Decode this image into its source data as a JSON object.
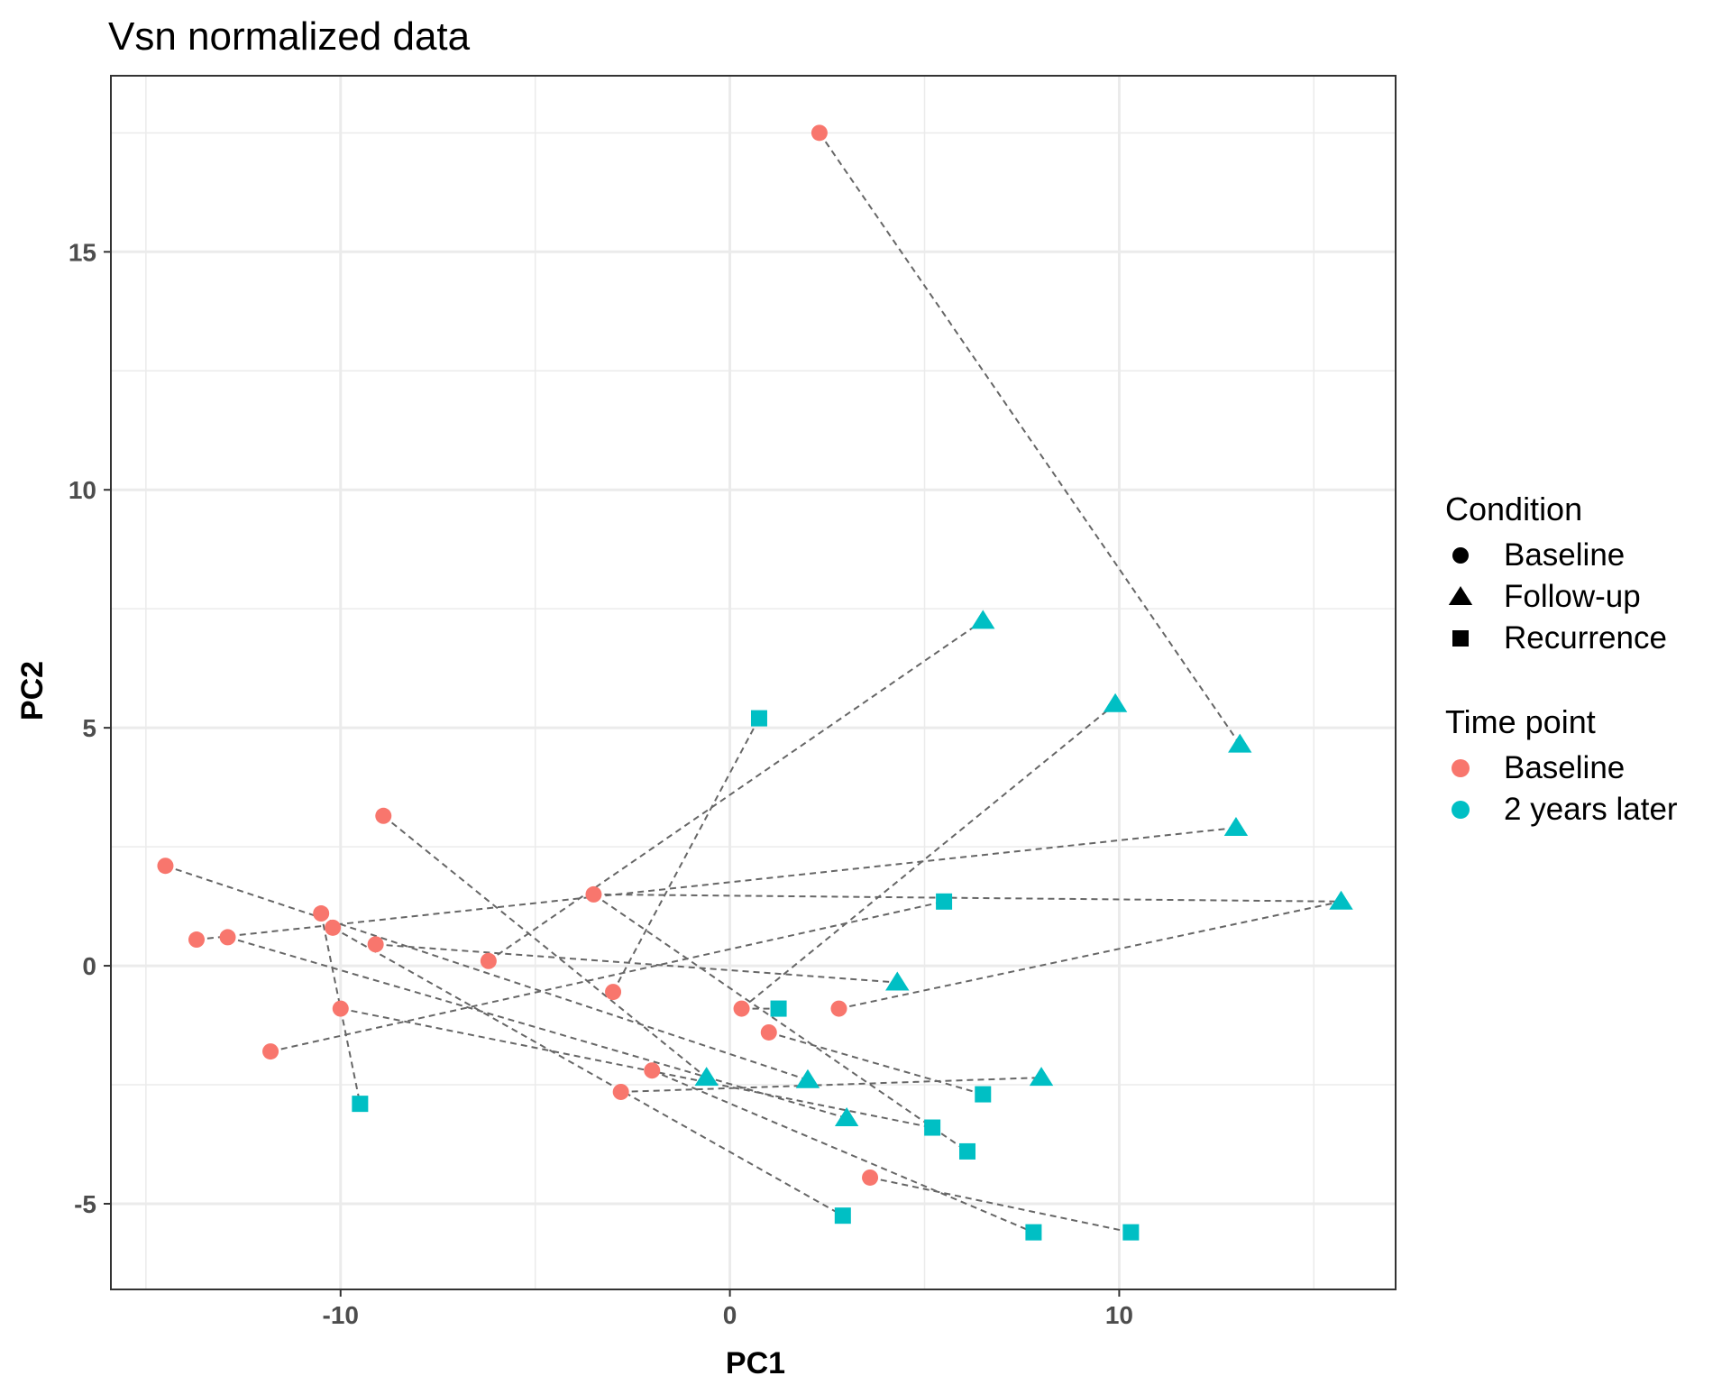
{
  "chart_data": {
    "type": "scatter",
    "title": "Vsn normalized data",
    "xlabel": "PC1",
    "ylabel": "PC2",
    "xlim": [
      -15.9,
      17.1
    ],
    "ylim": [
      -6.8,
      18.7
    ],
    "x_ticks": [
      -10,
      0,
      10
    ],
    "x_tick_labels": [
      "-10",
      "0",
      "10"
    ],
    "y_ticks": [
      -5,
      0,
      5,
      10,
      15
    ],
    "y_tick_labels": [
      "-5",
      "0",
      "5",
      "10",
      "15"
    ],
    "grid": true,
    "legend_position": "right",
    "colors": {
      "Baseline": "#F8766D",
      "2 years later": "#00BFC4"
    },
    "line_color": "#666666",
    "legends": [
      {
        "title": "Condition",
        "kind": "shape",
        "entries": [
          {
            "label": "Baseline",
            "shape": "circle"
          },
          {
            "label": "Follow-up",
            "shape": "triangle"
          },
          {
            "label": "Recurrence",
            "shape": "square"
          }
        ]
      },
      {
        "title": "Time point",
        "kind": "color",
        "entries": [
          {
            "label": "Baseline",
            "color": "#F8766D"
          },
          {
            "label": "2 years later",
            "color": "#00BFC4"
          }
        ]
      }
    ],
    "baseline_points": [
      [
        2.3,
        17.5
      ],
      [
        -14.5,
        2.1
      ],
      [
        -13.7,
        0.55
      ],
      [
        -12.9,
        0.6
      ],
      [
        -10.5,
        1.1
      ],
      [
        -10.2,
        0.8
      ],
      [
        -9.1,
        0.45
      ],
      [
        -8.9,
        3.15
      ],
      [
        -10.0,
        -0.9
      ],
      [
        -11.8,
        -1.8
      ],
      [
        -6.2,
        0.1
      ],
      [
        -3.5,
        1.5
      ],
      [
        -3.0,
        -0.55
      ],
      [
        -2.0,
        -2.2
      ],
      [
        -2.8,
        -2.65
      ],
      [
        0.3,
        -0.9
      ],
      [
        1.0,
        -1.4
      ],
      [
        2.8,
        -0.9
      ],
      [
        3.6,
        -4.45
      ]
    ],
    "followup_points": [
      {
        "x": 2.3,
        "y": 17.5,
        "x2": 13.1,
        "y2": 4.65,
        "condition": "Follow-up"
      },
      {
        "x": -14.5,
        "y": 2.1,
        "x2": 2.0,
        "y2": -2.4,
        "condition": "Follow-up"
      },
      {
        "x": -13.7,
        "y": 0.55,
        "x2": 13.0,
        "y2": 2.9,
        "condition": "Follow-up"
      },
      {
        "x": -12.9,
        "y": 0.6,
        "x2": 3.0,
        "y2": -3.2,
        "condition": "Follow-up"
      },
      {
        "x": -10.5,
        "y": 1.1,
        "x2": -9.5,
        "y2": -2.9,
        "condition": "Recurrence"
      },
      {
        "x": -10.2,
        "y": 0.8,
        "x2": 2.9,
        "y2": -5.25,
        "condition": "Recurrence"
      },
      {
        "x": -9.1,
        "y": 0.45,
        "x2": 4.3,
        "y2": -0.35,
        "condition": "Follow-up"
      },
      {
        "x": -8.9,
        "y": 3.15,
        "x2": -0.6,
        "y2": -2.35,
        "condition": "Follow-up"
      },
      {
        "x": -10.0,
        "y": -0.9,
        "x2": 5.2,
        "y2": -3.4,
        "condition": "Recurrence"
      },
      {
        "x": -11.8,
        "y": -1.8,
        "x2": 5.5,
        "y2": 1.35,
        "condition": "Recurrence"
      },
      {
        "x": -6.2,
        "y": 0.1,
        "x2": 6.5,
        "y2": 7.25,
        "condition": "Follow-up"
      },
      {
        "x": -3.5,
        "y": 1.5,
        "x2": 15.7,
        "y2": 1.35,
        "condition": "Follow-up"
      },
      {
        "x": -3.5,
        "y": 1.5,
        "x2": 6.1,
        "y2": -3.9,
        "condition": "Recurrence"
      },
      {
        "x": -3.0,
        "y": -0.55,
        "x2": 0.75,
        "y2": 5.2,
        "condition": "Recurrence"
      },
      {
        "x": -2.0,
        "y": -2.2,
        "x2": 7.8,
        "y2": -5.6,
        "condition": "Recurrence"
      },
      {
        "x": -2.8,
        "y": -2.65,
        "x2": 8.0,
        "y2": -2.35,
        "condition": "Follow-up"
      },
      {
        "x": 0.3,
        "y": -0.9,
        "x2": 9.9,
        "y2": 5.5,
        "condition": "Follow-up"
      },
      {
        "x": 1.0,
        "y": -1.4,
        "x2": 6.5,
        "y2": -2.7,
        "condition": "Recurrence"
      },
      {
        "x": 2.8,
        "y": -0.9,
        "x2": 15.7,
        "y2": 1.35,
        "condition": "Follow-up"
      },
      {
        "x": 3.6,
        "y": -4.45,
        "x2": 10.3,
        "y2": -5.6,
        "condition": "Recurrence"
      },
      {
        "x": 0.3,
        "y": -0.9,
        "x2": 1.25,
        "y2": -0.9,
        "condition": "Recurrence"
      }
    ]
  }
}
